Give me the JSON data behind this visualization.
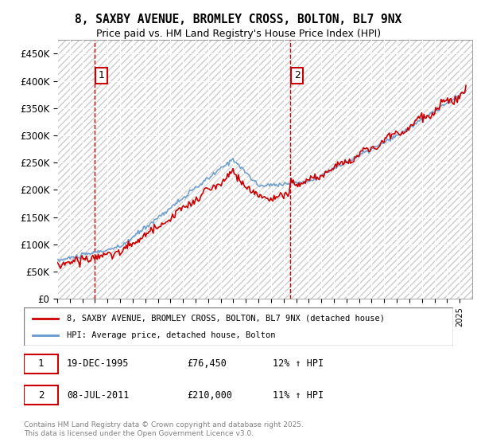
{
  "title_line1": "8, SAXBY AVENUE, BROMLEY CROSS, BOLTON, BL7 9NX",
  "title_line2": "Price paid vs. HM Land Registry's House Price Index (HPI)",
  "ylabel_ticks": [
    "£0",
    "£50K",
    "£100K",
    "£150K",
    "£200K",
    "£250K",
    "£300K",
    "£350K",
    "£400K",
    "£450K"
  ],
  "ytick_values": [
    0,
    50000,
    100000,
    150000,
    200000,
    250000,
    300000,
    350000,
    400000,
    450000
  ],
  "ylim": [
    0,
    475000
  ],
  "xlim_start": 1993,
  "xlim_end": 2026,
  "sale1_date": 1995.97,
  "sale1_price": 76450,
  "sale1_label": "1",
  "sale2_date": 2011.52,
  "sale2_price": 210000,
  "sale2_label": "2",
  "legend_line1": "8, SAXBY AVENUE, BROMLEY CROSS, BOLTON, BL7 9NX (detached house)",
  "legend_line2": "HPI: Average price, detached house, Bolton",
  "annotation1": "1    19-DEC-1995         £76,450         12% ↑ HPI",
  "annotation2": "2    08-JUL-2011         £210,000       11% ↑ HPI",
  "footer": "Contains HM Land Registry data © Crown copyright and database right 2025.\nThis data is licensed under the Open Government Licence v3.0.",
  "red_color": "#cc0000",
  "blue_color": "#6699cc",
  "background_plot": "#e8e8f0",
  "hatch_color": "#cccccc",
  "grid_color": "#ffffff",
  "box_color": "#cc0000"
}
